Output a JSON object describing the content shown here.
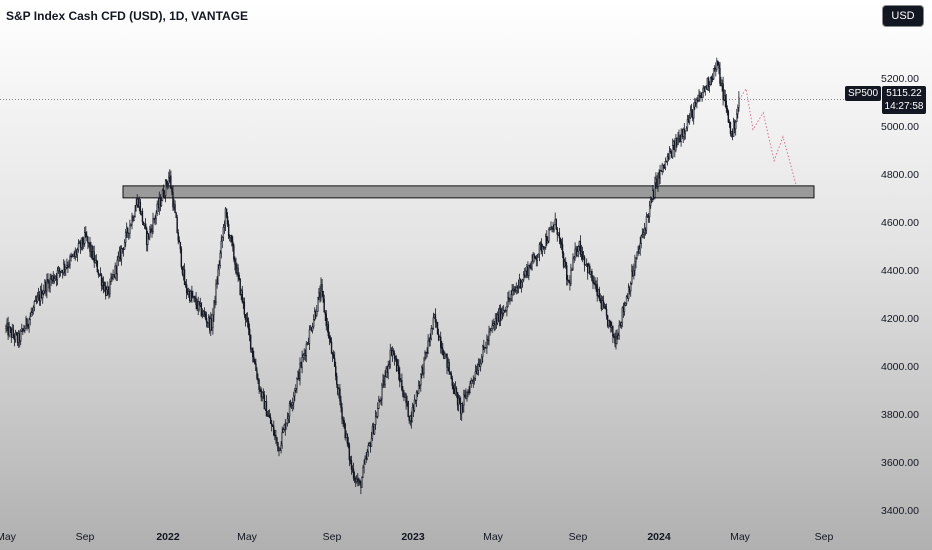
{
  "header": {
    "title": "S&P Index Cash CFD (USD), 1D, VANTAGE",
    "currency_button": "USD"
  },
  "price_label": {
    "symbol": "SP500",
    "price": "5115.22",
    "countdown": "14:27:58"
  },
  "colors": {
    "candle": "#131722",
    "zone_fill": "#8c8c8c",
    "projection": "#e0607a",
    "label_bg": "#131722"
  },
  "chart_data": {
    "type": "candlestick",
    "title": "S&P Index Cash CFD (USD), 1D, VANTAGE",
    "ylim": [
      3270,
      5430
    ],
    "y_ticks": [
      "5200.00",
      "5000.00",
      "4800.00",
      "4600.00",
      "4400.00",
      "4200.00",
      "4000.00",
      "3800.00",
      "3600.00",
      "3400.00"
    ],
    "x_ticks": [
      {
        "label": "May",
        "bold": false
      },
      {
        "label": "Sep",
        "bold": false
      },
      {
        "label": "2022",
        "bold": true
      },
      {
        "label": "May",
        "bold": false
      },
      {
        "label": "Sep",
        "bold": false
      },
      {
        "label": "2023",
        "bold": true
      },
      {
        "label": "May",
        "bold": false
      },
      {
        "label": "Sep",
        "bold": false
      },
      {
        "label": "2024",
        "bold": true
      },
      {
        "label": "May",
        "bold": false
      },
      {
        "label": "Sep",
        "bold": false
      }
    ],
    "x_range": [
      "2021-05",
      "2024-09"
    ],
    "current_price": 5115.22,
    "price_path": [
      [
        "2021-05-01",
        4160
      ],
      [
        "2021-05-20",
        4110
      ],
      [
        "2021-07-01",
        4340
      ],
      [
        "2021-08-15",
        4460
      ],
      [
        "2021-09-02",
        4540
      ],
      [
        "2021-10-04",
        4300
      ],
      [
        "2021-11-18",
        4700
      ],
      [
        "2021-12-01",
        4530
      ],
      [
        "2022-01-03",
        4800
      ],
      [
        "2022-01-27",
        4330
      ],
      [
        "2022-03-08",
        4170
      ],
      [
        "2022-03-29",
        4640
      ],
      [
        "2022-05-20",
        3900
      ],
      [
        "2022-06-16",
        3660
      ],
      [
        "2022-08-16",
        4320
      ],
      [
        "2022-09-30",
        3580
      ],
      [
        "2022-10-13",
        3500
      ],
      [
        "2022-11-30",
        4080
      ],
      [
        "2022-12-28",
        3780
      ],
      [
        "2023-02-02",
        4200
      ],
      [
        "2023-03-13",
        3820
      ],
      [
        "2023-05-01",
        4170
      ],
      [
        "2023-07-31",
        4600
      ],
      [
        "2023-08-18",
        4340
      ],
      [
        "2023-09-01",
        4520
      ],
      [
        "2023-10-27",
        4110
      ],
      [
        "2023-12-29",
        4780
      ],
      [
        "2024-03-28",
        5260
      ],
      [
        "2024-04-19",
        4960
      ],
      [
        "2024-04-30",
        5115
      ]
    ],
    "volatility_note": "",
    "zone": {
      "y_top": 4755,
      "y_bottom": 4705,
      "x_start": "2021-11-01",
      "x_end": "2024-09-01"
    },
    "projection": [
      [
        "2024-04-30",
        5115
      ],
      [
        "2024-05-10",
        5160
      ],
      [
        "2024-05-20",
        4990
      ],
      [
        "2024-06-04",
        5060
      ],
      [
        "2024-06-20",
        4860
      ],
      [
        "2024-07-03",
        4960
      ],
      [
        "2024-07-22",
        4760
      ]
    ],
    "grid": false,
    "legend": "none"
  }
}
